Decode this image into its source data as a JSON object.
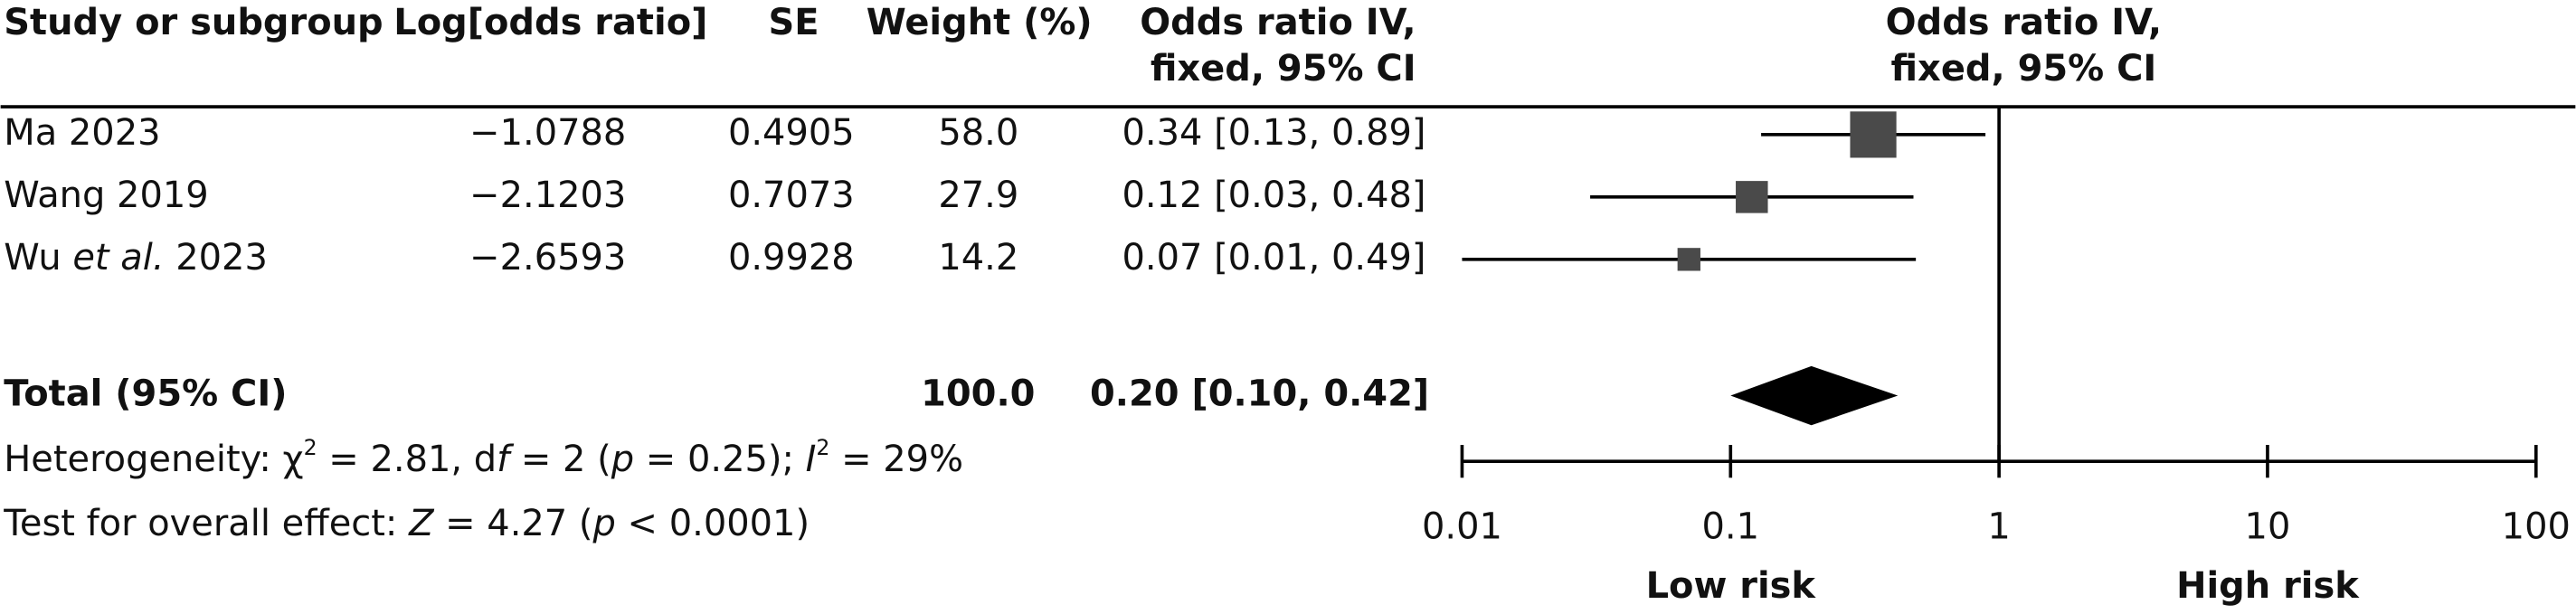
{
  "chart_data": {
    "type": "forest",
    "columns": [
      "Study or subgroup",
      "Log[odds ratio]",
      "SE",
      "Weight (%)"
    ],
    "ci_header": [
      "Odds ratio IV,",
      "fixed, 95% CI"
    ],
    "plot_header": [
      "Odds ratio IV,",
      "fixed, 95% CI"
    ],
    "studies": [
      {
        "name": [
          "Ma 2023"
        ],
        "log_or": "−1.0788",
        "se": "0.4905",
        "weight_label": "58.0",
        "weight": 58.0,
        "or": 0.34,
        "lo": 0.13,
        "hi": 0.89,
        "ci_label": "0.34 [0.13, 0.89]"
      },
      {
        "name": [
          "Wang 2019"
        ],
        "log_or": "−2.1203",
        "se": "0.7073",
        "weight_label": "27.9",
        "weight": 27.9,
        "or": 0.12,
        "lo": 0.03,
        "hi": 0.48,
        "ci_label": "0.12 [0.03, 0.48]"
      },
      {
        "name": [
          "Wu ",
          "et al.",
          " 2023"
        ],
        "log_or": "−2.6593",
        "se": "0.9928",
        "weight_label": "14.2",
        "weight": 14.2,
        "or": 0.07,
        "lo": 0.01,
        "hi": 0.49,
        "ci_label": "0.07 [0.01, 0.49]"
      }
    ],
    "total": {
      "name": "Total (95% CI)",
      "weight_label": "100.0",
      "or": 0.2,
      "lo": 0.1,
      "hi": 0.42,
      "ci_label": "0.20 [0.10, 0.42]"
    },
    "heterogeneity": [
      "Heterogeneity: χ",
      "2",
      " = 2.81, d",
      "f",
      " = 2 (",
      "p",
      " = 0.25); ",
      "I",
      "2",
      " = 29%"
    ],
    "overall_test": [
      "Test for overall effect: ",
      "Z",
      " = 4.27 (",
      "p",
      " < 0.0001)"
    ],
    "xscale": "log",
    "xlim": [
      0.01,
      100
    ],
    "xticks": [
      0.01,
      0.1,
      1,
      10,
      100
    ],
    "ref_line": 1,
    "x_labels": [
      "Low risk",
      "High risk"
    ],
    "color": "#4a4a4a"
  }
}
